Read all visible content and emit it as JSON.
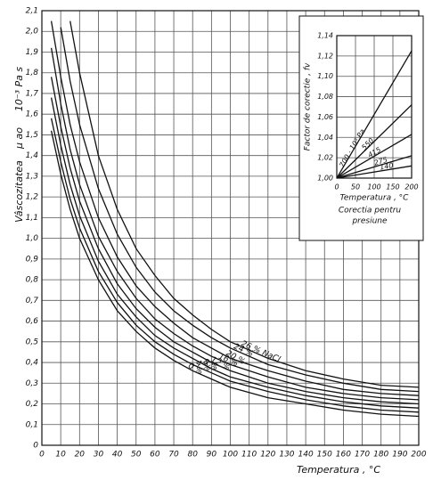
{
  "chart_data": [
    {
      "type": "line",
      "x_label": "Temperatura , °C",
      "y_label": "Vâscozitatea",
      "y_symbol": "μ ao",
      "y_unit": "10⁻³ Pa s",
      "color": "#111111",
      "grid": true,
      "x": [
        5,
        10,
        15,
        20,
        30,
        40,
        50,
        60,
        70,
        80,
        90,
        100,
        120,
        140,
        160,
        180,
        200
      ],
      "series": [
        {
          "name": "0 %",
          "values": [
            1.52,
            1.31,
            1.14,
            1.0,
            0.8,
            0.65,
            0.55,
            0.47,
            0.41,
            0.36,
            0.32,
            0.28,
            0.23,
            0.2,
            0.17,
            0.15,
            0.14
          ]
        },
        {
          "name": "4 %",
          "values": [
            1.58,
            1.37,
            1.19,
            1.05,
            0.84,
            0.69,
            0.58,
            0.5,
            0.44,
            0.39,
            0.35,
            0.31,
            0.26,
            0.22,
            0.19,
            0.17,
            0.16
          ]
        },
        {
          "name": "8 %",
          "values": [
            1.68,
            1.45,
            1.26,
            1.11,
            0.89,
            0.73,
            0.62,
            0.53,
            0.47,
            0.42,
            0.37,
            0.33,
            0.28,
            0.24,
            0.21,
            0.19,
            0.18
          ]
        },
        {
          "name": "12 %",
          "values": [
            1.78,
            1.54,
            1.34,
            1.18,
            0.95,
            0.78,
            0.66,
            0.57,
            0.5,
            0.45,
            0.4,
            0.36,
            0.3,
            0.26,
            0.23,
            0.21,
            0.2
          ]
        },
        {
          "name": "16 %",
          "values": [
            1.92,
            1.65,
            1.43,
            1.26,
            1.01,
            0.84,
            0.71,
            0.61,
            0.54,
            0.48,
            0.43,
            0.39,
            0.33,
            0.28,
            0.25,
            0.23,
            0.22
          ]
        },
        {
          "name": "20 %",
          "values": [
            2.05,
            1.78,
            1.55,
            1.37,
            1.1,
            0.91,
            0.77,
            0.67,
            0.59,
            0.52,
            0.47,
            0.42,
            0.36,
            0.31,
            0.27,
            0.25,
            0.24
          ]
        },
        {
          "name": "24 %",
          "values": [
            null,
            2.02,
            1.76,
            1.55,
            1.24,
            1.02,
            0.86,
            0.74,
            0.65,
            0.58,
            0.52,
            0.47,
            0.39,
            0.34,
            0.3,
            0.27,
            0.26
          ]
        },
        {
          "name": "26 % NaCl",
          "values": [
            null,
            null,
            2.05,
            1.8,
            1.4,
            1.14,
            0.95,
            0.82,
            0.71,
            0.63,
            0.56,
            0.5,
            0.42,
            0.36,
            0.32,
            0.29,
            0.28
          ]
        }
      ],
      "xlim": [
        0,
        200
      ],
      "ylim": [
        0,
        2.1
      ],
      "xticks": [
        0,
        10,
        20,
        30,
        40,
        50,
        60,
        70,
        80,
        90,
        100,
        110,
        120,
        130,
        140,
        150,
        160,
        170,
        180,
        190,
        200
      ],
      "yticks": [
        0,
        {
          "value": 0.1,
          "label": "0,1"
        },
        {
          "value": 0.2,
          "label": "0,2"
        },
        {
          "value": 0.3,
          "label": "0,3"
        },
        {
          "value": 0.4,
          "label": "0,4"
        },
        {
          "value": 0.5,
          "label": "0,5"
        },
        {
          "value": 0.6,
          "label": "0,6"
        },
        {
          "value": 0.7,
          "label": "0,7"
        },
        {
          "value": 0.8,
          "label": "0,8"
        },
        {
          "value": 0.9,
          "label": "0,9"
        },
        {
          "value": 1.0,
          "label": "1,0"
        },
        {
          "value": 1.1,
          "label": "1,1"
        },
        {
          "value": 1.2,
          "label": "1,2"
        },
        {
          "value": 1.3,
          "label": "1,3"
        },
        {
          "value": 1.4,
          "label": "1,4"
        },
        {
          "value": 1.5,
          "label": "1,5"
        },
        {
          "value": 1.6,
          "label": "1,6"
        },
        {
          "value": 1.7,
          "label": "1,7"
        },
        {
          "value": 1.8,
          "label": "1,8"
        },
        {
          "value": 1.9,
          "label": "1,9"
        },
        {
          "value": 2.0,
          "label": "2,0"
        },
        {
          "value": 2.1,
          "label": "2,1"
        }
      ]
    },
    {
      "type": "line",
      "x_label": "Temperatura , °C",
      "y_label": "Factor de corectie , fv",
      "caption": [
        "Corectia pentru",
        "presiune"
      ],
      "color": "#111111",
      "grid": true,
      "x": [
        0,
        200
      ],
      "series": [
        {
          "name": "700 · 10⁵ Pa",
          "values": [
            1.0,
            1.125
          ]
        },
        {
          "name": "550",
          "values": [
            1.0,
            1.072
          ]
        },
        {
          "name": "415",
          "values": [
            1.0,
            1.043
          ]
        },
        {
          "name": "275",
          "values": [
            1.0,
            1.022
          ]
        },
        {
          "name": "140",
          "values": [
            1.0,
            1.012
          ]
        }
      ],
      "xlim": [
        0,
        200
      ],
      "ylim": [
        1.0,
        1.14
      ],
      "xticks": [
        0,
        50,
        100,
        150,
        200
      ],
      "yticks": [
        {
          "value": 1.0,
          "label": "1,00"
        },
        {
          "value": 1.02,
          "label": "1,02"
        },
        {
          "value": 1.04,
          "label": "1,04"
        },
        {
          "value": 1.06,
          "label": "1,06"
        },
        {
          "value": 1.08,
          "label": "1,08"
        },
        {
          "value": 1.1,
          "label": "1,10"
        },
        {
          "value": 1.12,
          "label": "1,12"
        },
        {
          "value": 1.14,
          "label": "1,14"
        }
      ]
    }
  ]
}
